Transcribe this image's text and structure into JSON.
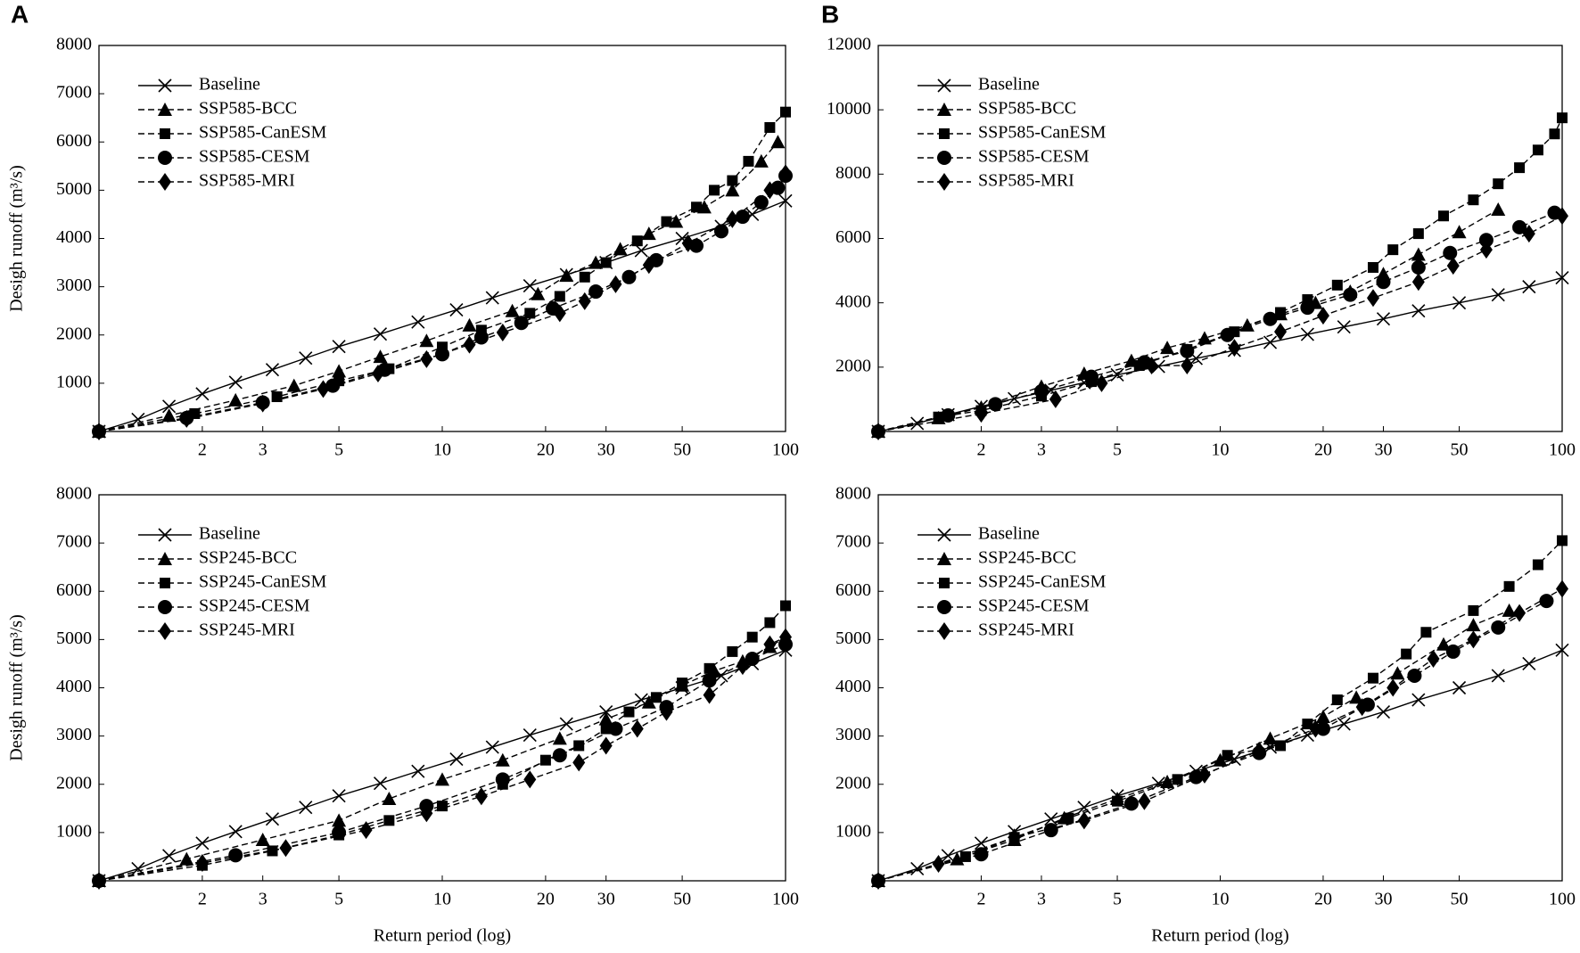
{
  "chart_data": [
    {
      "type": "line",
      "panel_label": "A",
      "ylabel": "Desigh runoff (m³/s)",
      "xscale": "log",
      "xlim": [
        1,
        100
      ],
      "xticks": [
        2,
        3,
        5,
        10,
        20,
        30,
        50,
        100
      ],
      "ylim": [
        0,
        8000
      ],
      "yticks": [
        1000,
        2000,
        3000,
        4000,
        5000,
        6000,
        7000,
        8000
      ],
      "legend": "upper left",
      "series": [
        {
          "name": "Baseline",
          "color": "#000000",
          "marker": "x",
          "dashed": false,
          "x": [
            1,
            1.3,
            1.6,
            2,
            2.5,
            3.2,
            4,
            5,
            6.6,
            8.5,
            11,
            14,
            18,
            23,
            30,
            38,
            50,
            65,
            80,
            100
          ],
          "values": [
            0,
            250,
            520,
            780,
            1020,
            1280,
            1520,
            1760,
            2020,
            2270,
            2520,
            2770,
            3020,
            3250,
            3500,
            3750,
            4000,
            4250,
            4500,
            4780
          ]
        },
        {
          "name": "SSP585-BCC",
          "color": "#000000",
          "marker": "triangle",
          "dashed": true,
          "x": [
            1,
            1.6,
            2.5,
            3.7,
            5,
            6.6,
            9,
            12,
            16,
            19,
            23,
            28,
            33,
            40,
            48,
            58,
            70,
            85,
            95
          ],
          "values": [
            0,
            330,
            650,
            950,
            1250,
            1550,
            1880,
            2200,
            2500,
            2850,
            3230,
            3500,
            3780,
            4100,
            4350,
            4650,
            5000,
            5600,
            6000
          ]
        },
        {
          "name": "SSP585-CanESM",
          "color": "#000000",
          "marker": "square",
          "dashed": true,
          "x": [
            1,
            1.9,
            3.3,
            5,
            7,
            10,
            13,
            18,
            22,
            26,
            30,
            37,
            45,
            55,
            62,
            70,
            78,
            90,
            100
          ],
          "values": [
            0,
            370,
            720,
            1050,
            1300,
            1750,
            2100,
            2450,
            2800,
            3200,
            3500,
            3950,
            4350,
            4650,
            5000,
            5200,
            5600,
            6300,
            6620
          ]
        },
        {
          "name": "SSP585-CESM",
          "color": "#000000",
          "marker": "circle",
          "dashed": true,
          "x": [
            1,
            1.8,
            3,
            4.8,
            6.8,
            10,
            13,
            17,
            21,
            28,
            35,
            42,
            55,
            65,
            75,
            85,
            95,
            100
          ],
          "values": [
            0,
            280,
            600,
            950,
            1280,
            1600,
            1950,
            2250,
            2550,
            2900,
            3200,
            3550,
            3850,
            4150,
            4450,
            4750,
            5050,
            5300
          ]
        },
        {
          "name": "SSP585-MRI",
          "color": "#000000",
          "marker": "diamond",
          "dashed": true,
          "x": [
            1,
            1.8,
            3,
            4.5,
            6.5,
            9,
            12,
            15,
            22,
            26,
            32,
            40,
            52,
            70,
            90,
            100
          ],
          "values": [
            0,
            260,
            580,
            880,
            1200,
            1500,
            1800,
            2050,
            2450,
            2700,
            3050,
            3450,
            3900,
            4400,
            5000,
            5350
          ]
        }
      ]
    },
    {
      "type": "line",
      "panel_label": "B",
      "xscale": "log",
      "xlim": [
        1,
        100
      ],
      "xticks": [
        2,
        3,
        5,
        10,
        20,
        30,
        50,
        100
      ],
      "ylim": [
        0,
        12000
      ],
      "yticks": [
        2000,
        4000,
        6000,
        8000,
        10000,
        12000
      ],
      "legend": "upper left",
      "series": [
        {
          "name": "Baseline",
          "color": "#000000",
          "marker": "x",
          "dashed": false,
          "x": [
            1,
            1.3,
            1.6,
            2,
            2.5,
            3.2,
            4,
            5,
            6.6,
            8.5,
            11,
            14,
            18,
            23,
            30,
            38,
            50,
            65,
            80,
            100
          ],
          "values": [
            0,
            250,
            520,
            780,
            1020,
            1280,
            1520,
            1760,
            2020,
            2270,
            2520,
            2770,
            3020,
            3250,
            3500,
            3750,
            4000,
            4250,
            4500,
            4780
          ]
        },
        {
          "name": "SSP585-BCC",
          "color": "#000000",
          "marker": "triangle",
          "dashed": true,
          "x": [
            1,
            1.5,
            2,
            3,
            4,
            5.5,
            7,
            9,
            12,
            15,
            19,
            24,
            30,
            38,
            50,
            65
          ],
          "values": [
            0,
            420,
            750,
            1400,
            1800,
            2200,
            2600,
            2900,
            3300,
            3650,
            4000,
            4350,
            4900,
            5500,
            6200,
            6900
          ]
        },
        {
          "name": "SSP585-CanESM",
          "color": "#000000",
          "marker": "square",
          "dashed": true,
          "x": [
            1,
            1.5,
            2,
            3,
            4.2,
            5.8,
            8,
            11,
            15,
            18,
            22,
            28,
            32,
            38,
            45,
            55,
            65,
            75,
            85,
            95,
            100
          ],
          "values": [
            0,
            450,
            650,
            1100,
            1550,
            2050,
            2550,
            3100,
            3700,
            4100,
            4550,
            5100,
            5650,
            6150,
            6700,
            7200,
            7700,
            8200,
            8750,
            9250,
            9750
          ]
        },
        {
          "name": "SSP585-CESM",
          "color": "#000000",
          "marker": "circle",
          "dashed": true,
          "x": [
            1,
            1.6,
            2.2,
            3,
            4.2,
            6,
            8,
            10.5,
            14,
            18,
            24,
            30,
            38,
            47,
            60,
            75,
            95
          ],
          "values": [
            0,
            500,
            850,
            1250,
            1700,
            2150,
            2500,
            3000,
            3500,
            3850,
            4250,
            4650,
            5100,
            5550,
            5950,
            6350,
            6800
          ]
        },
        {
          "name": "SSP585-MRI",
          "color": "#000000",
          "marker": "diamond",
          "dashed": true,
          "x": [
            1,
            2,
            3.3,
            4.5,
            6.3,
            8,
            11,
            15,
            20,
            28,
            38,
            48,
            60,
            80,
            100
          ],
          "values": [
            0,
            550,
            1000,
            1500,
            2050,
            2050,
            2600,
            3100,
            3600,
            4150,
            4650,
            5150,
            5650,
            6150,
            6700
          ]
        }
      ]
    },
    {
      "type": "line",
      "ylabel": "Desigh runoff (m³/s)",
      "xlabel": "Return period (log)",
      "xscale": "log",
      "xlim": [
        1,
        100
      ],
      "xticks": [
        2,
        3,
        5,
        10,
        20,
        30,
        50,
        100
      ],
      "ylim": [
        0,
        8000
      ],
      "yticks": [
        1000,
        2000,
        3000,
        4000,
        5000,
        6000,
        7000,
        8000
      ],
      "legend": "upper left",
      "series": [
        {
          "name": "Baseline",
          "color": "#000000",
          "marker": "x",
          "dashed": false,
          "x": [
            1,
            1.3,
            1.6,
            2,
            2.5,
            3.2,
            4,
            5,
            6.6,
            8.5,
            11,
            14,
            18,
            23,
            30,
            38,
            50,
            65,
            80,
            100
          ],
          "values": [
            0,
            250,
            520,
            780,
            1020,
            1280,
            1520,
            1760,
            2020,
            2270,
            2520,
            2770,
            3020,
            3250,
            3500,
            3750,
            4000,
            4250,
            4500,
            4780
          ]
        },
        {
          "name": "SSP245-BCC",
          "color": "#000000",
          "marker": "triangle",
          "dashed": true,
          "x": [
            1,
            1.8,
            3,
            5,
            7,
            10,
            15,
            22,
            30,
            40,
            50,
            62,
            75,
            90,
            100
          ],
          "values": [
            0,
            450,
            850,
            1250,
            1700,
            2100,
            2500,
            2950,
            3350,
            3700,
            4050,
            4350,
            4550,
            4850,
            5050
          ]
        },
        {
          "name": "SSP245-CanESM",
          "color": "#000000",
          "marker": "square",
          "dashed": true,
          "x": [
            1,
            2,
            3.2,
            5,
            7,
            10,
            15,
            20,
            25,
            30,
            35,
            42,
            50,
            60,
            70,
            80,
            90,
            100
          ],
          "values": [
            0,
            320,
            620,
            950,
            1250,
            1550,
            2000,
            2500,
            2800,
            3150,
            3500,
            3800,
            4100,
            4400,
            4750,
            5050,
            5350,
            5700
          ]
        },
        {
          "name": "SSP245-CESM",
          "color": "#000000",
          "marker": "circle",
          "dashed": true,
          "x": [
            1,
            2.5,
            5,
            9,
            15,
            22,
            32,
            45,
            60,
            80,
            100
          ],
          "values": [
            0,
            530,
            1000,
            1550,
            2100,
            2600,
            3150,
            3600,
            4150,
            4600,
            4900
          ]
        },
        {
          "name": "SSP245-MRI",
          "color": "#000000",
          "marker": "diamond",
          "dashed": true,
          "x": [
            1,
            2,
            3.5,
            6,
            9,
            13,
            18,
            25,
            30,
            37,
            45,
            60,
            75,
            90,
            100
          ],
          "values": [
            0,
            370,
            680,
            1050,
            1400,
            1750,
            2100,
            2450,
            2800,
            3150,
            3500,
            3850,
            4450,
            4900,
            5050
          ]
        }
      ]
    },
    {
      "type": "line",
      "xlabel": "Return period (log)",
      "xscale": "log",
      "xlim": [
        1,
        100
      ],
      "xticks": [
        2,
        3,
        5,
        10,
        20,
        30,
        50,
        100
      ],
      "ylim": [
        0,
        8000
      ],
      "yticks": [
        1000,
        2000,
        3000,
        4000,
        5000,
        6000,
        7000,
        8000
      ],
      "legend": "upper left",
      "series": [
        {
          "name": "Baseline",
          "color": "#000000",
          "marker": "x",
          "dashed": false,
          "x": [
            1,
            1.3,
            1.6,
            2,
            2.5,
            3.2,
            4,
            5,
            6.6,
            8.5,
            11,
            14,
            18,
            23,
            30,
            38,
            50,
            65,
            80,
            100
          ],
          "values": [
            0,
            250,
            520,
            780,
            1020,
            1280,
            1520,
            1760,
            2020,
            2270,
            2520,
            2770,
            3020,
            3250,
            3500,
            3750,
            4000,
            4250,
            4500,
            4780
          ]
        },
        {
          "name": "SSP245-BCC",
          "color": "#000000",
          "marker": "triangle",
          "dashed": true,
          "x": [
            1,
            1.7,
            2.5,
            3.5,
            5,
            7,
            10,
            14,
            20,
            25,
            33,
            45,
            55,
            70
          ],
          "values": [
            0,
            450,
            850,
            1300,
            1700,
            2050,
            2500,
            2950,
            3400,
            3800,
            4300,
            4900,
            5300,
            5600
          ]
        },
        {
          "name": "SSP245-CanESM",
          "color": "#000000",
          "marker": "square",
          "dashed": true,
          "x": [
            1,
            1.8,
            2.5,
            3.6,
            5,
            7.5,
            10.5,
            15,
            18,
            22,
            28,
            35,
            40,
            55,
            70,
            85,
            100
          ],
          "values": [
            0,
            500,
            900,
            1300,
            1650,
            2100,
            2600,
            2800,
            3250,
            3750,
            4200,
            4700,
            5150,
            5600,
            6100,
            6550,
            7050
          ]
        },
        {
          "name": "SSP245-CESM",
          "color": "#000000",
          "marker": "circle",
          "dashed": true,
          "x": [
            1,
            2,
            3.2,
            5.5,
            8.5,
            13,
            20,
            27,
            37,
            48,
            65,
            90
          ],
          "values": [
            0,
            550,
            1050,
            1600,
            2150,
            2650,
            3150,
            3650,
            4250,
            4750,
            5250,
            5800
          ]
        },
        {
          "name": "SSP245-MRI",
          "color": "#000000",
          "marker": "diamond",
          "dashed": true,
          "x": [
            1,
            1.5,
            2.5,
            4,
            6,
            9,
            13,
            19,
            26,
            32,
            42,
            55,
            75,
            100
          ],
          "values": [
            0,
            350,
            900,
            1250,
            1650,
            2200,
            2700,
            3150,
            3600,
            4000,
            4600,
            5000,
            5550,
            6050
          ]
        }
      ]
    }
  ]
}
